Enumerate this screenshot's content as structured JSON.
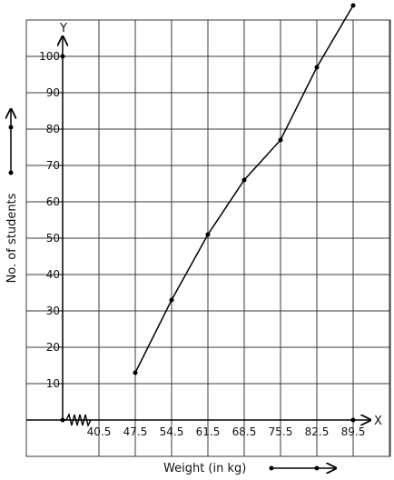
{
  "chart_data": {
    "type": "line",
    "xlabel": "Weight (in kg)",
    "ylabel": "No. of students",
    "x_axis_letter": "X",
    "y_axis_letter": "Y",
    "x_ticks": [
      "40.5",
      "47.5",
      "54.5",
      "61.5",
      "68.5",
      "75.5",
      "82.5",
      "89.5"
    ],
    "y_ticks": [
      "10",
      "20",
      "30",
      "40",
      "50",
      "60",
      "70",
      "80",
      "90",
      "100"
    ],
    "ylim": [
      0,
      100
    ],
    "grid": true,
    "axis_break_on_x": true,
    "series": [
      {
        "x": [
          47.5,
          54.5,
          61.5,
          68.5,
          75.5,
          82.5,
          89.5
        ],
        "y": [
          13,
          33,
          51,
          66,
          77,
          97,
          114
        ]
      }
    ],
    "colors": {
      "line": "#000000",
      "grid": "#3a3a3a"
    }
  }
}
